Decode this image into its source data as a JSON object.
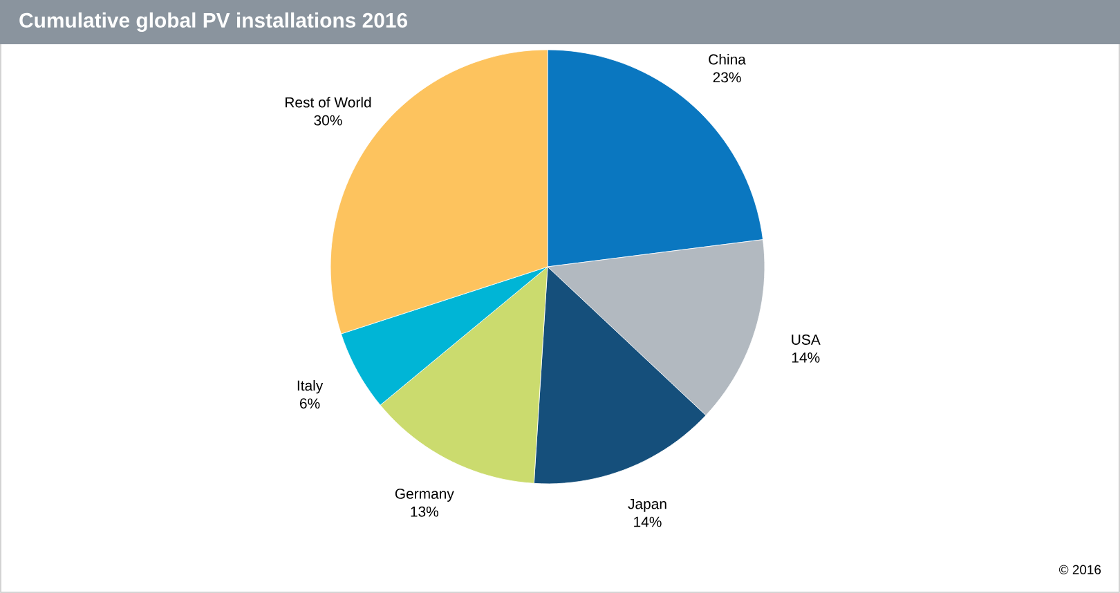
{
  "chart_data": {
    "type": "pie",
    "title": "Cumulative global PV installations 2016",
    "categories": [
      "China",
      "USA",
      "Japan",
      "Germany",
      "Italy",
      "Rest of World"
    ],
    "values": [
      23,
      14,
      14,
      13,
      6,
      30
    ],
    "value_labels": [
      "23%",
      "14%",
      "14%",
      "13%",
      "6%",
      "30%"
    ],
    "colors": [
      "#0a77c0",
      "#b2b9c0",
      "#154f7b",
      "#cbdb6e",
      "#00b5d6",
      "#fdc35e"
    ],
    "annotations": [
      "© 2016"
    ]
  }
}
